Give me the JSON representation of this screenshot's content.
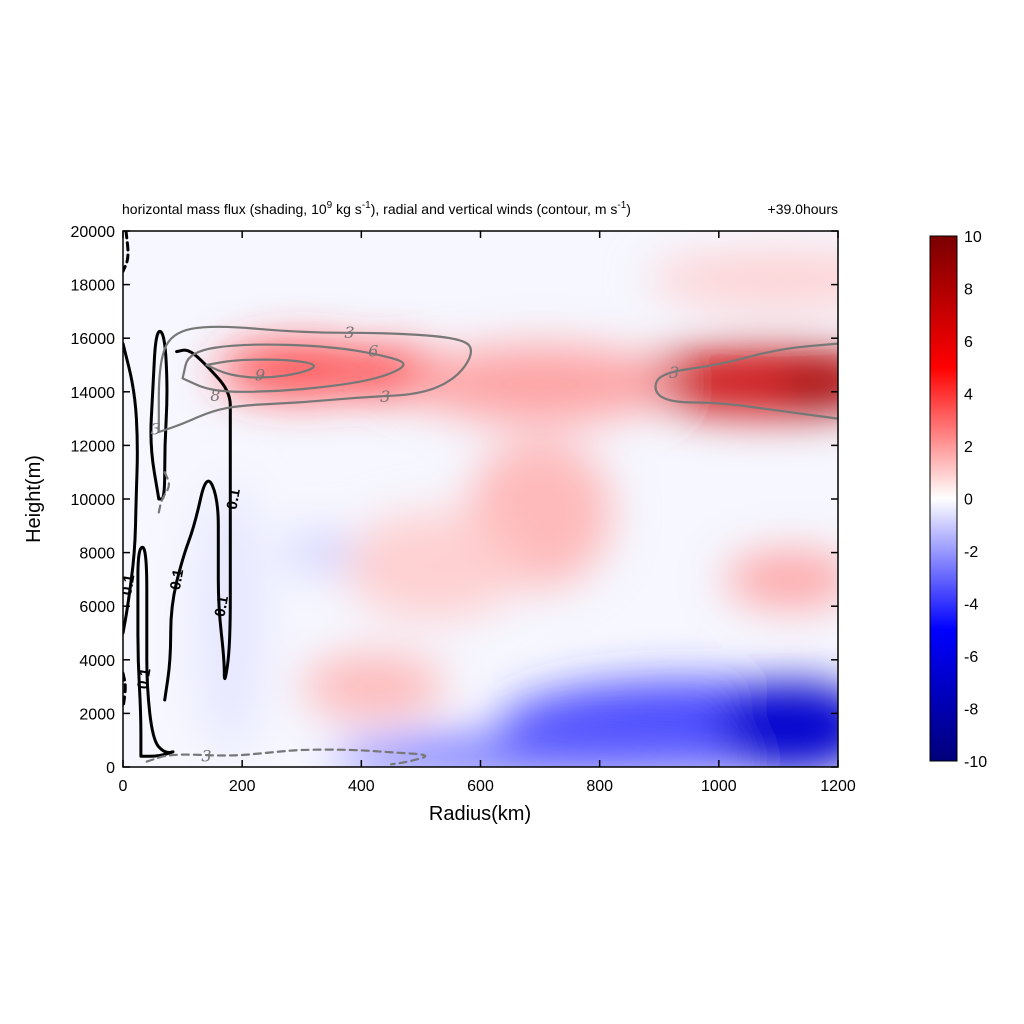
{
  "chart_data": {
    "type": "heatmap",
    "title_parts": {
      "a": "horizontal mass flux (shading, 10",
      "a_sup": "9",
      "b": " kg s",
      "b_sup": "-1",
      "c": "), radial and vertical winds (contour, m s",
      "c_sup": "-1",
      "d": ")"
    },
    "time_label": "+39.0hours",
    "xlabel": "Radius(km)",
    "ylabel": "Height(m)",
    "xlim": [
      0,
      1200
    ],
    "ylim": [
      0,
      20000
    ],
    "xticks": [
      "0",
      "200",
      "400",
      "600",
      "800",
      "1000",
      "1200"
    ],
    "yticks": [
      "0",
      "2000",
      "4000",
      "6000",
      "8000",
      "10000",
      "12000",
      "14000",
      "16000",
      "18000",
      "20000"
    ],
    "colorbar": {
      "range": [
        -10,
        10
      ],
      "ticks": [
        "10",
        "8",
        "6",
        "4",
        "2",
        "0",
        "-2",
        "-4",
        "-6",
        "-8",
        "-10"
      ],
      "colormap": [
        "#00007a",
        "#0000ff",
        "#ffffff",
        "#ff0000",
        "#7a0000"
      ]
    },
    "shading_blobs": [
      {
        "x": 300,
        "y": 14800,
        "rx": 140,
        "ry": 1000,
        "value": 4
      },
      {
        "x": 460,
        "y": 14700,
        "rx": 80,
        "ry": 900,
        "value": 4
      },
      {
        "x": 1080,
        "y": 14400,
        "rx": 230,
        "ry": 1300,
        "value": 7
      },
      {
        "x": 1170,
        "y": 14200,
        "rx": 60,
        "ry": 900,
        "value": 9
      },
      {
        "x": 700,
        "y": 14300,
        "rx": 220,
        "ry": 1400,
        "value": 2
      },
      {
        "x": 1100,
        "y": 18200,
        "rx": 220,
        "ry": 1000,
        "value": 1
      },
      {
        "x": 700,
        "y": 9500,
        "rx": 120,
        "ry": 2800,
        "value": 1.5
      },
      {
        "x": 520,
        "y": 7500,
        "rx": 150,
        "ry": 2000,
        "value": 1
      },
      {
        "x": 420,
        "y": 3000,
        "rx": 120,
        "ry": 1200,
        "value": 1.5
      },
      {
        "x": 1120,
        "y": 7000,
        "rx": 110,
        "ry": 1000,
        "value": 2
      },
      {
        "x": 950,
        "y": 1500,
        "rx": 320,
        "ry": 1700,
        "value": -4
      },
      {
        "x": 1130,
        "y": 1500,
        "rx": 130,
        "ry": 1700,
        "value": -7
      },
      {
        "x": 700,
        "y": 400,
        "rx": 350,
        "ry": 800,
        "value": -3
      },
      {
        "x": 330,
        "y": 8000,
        "rx": 60,
        "ry": 700,
        "value": -1
      },
      {
        "x": 180,
        "y": 5500,
        "rx": 60,
        "ry": 5000,
        "value": -0.5
      }
    ],
    "contours": [
      {
        "level": "0.1",
        "color": "#000000",
        "dashed": false,
        "points": [
          [
            0,
            15800
          ],
          [
            20,
            14000
          ],
          [
            25,
            12000
          ],
          [
            22,
            10000
          ],
          [
            20,
            8000
          ],
          [
            8,
            6000
          ],
          [
            0,
            5000
          ]
        ]
      },
      {
        "level": "0.1",
        "color": "#000000",
        "dashed": false,
        "points": [
          [
            30,
            400
          ],
          [
            30,
            2000
          ],
          [
            25,
            4000
          ],
          [
            25,
            6000
          ],
          [
            25,
            8200
          ],
          [
            40,
            8200
          ],
          [
            40,
            5000
          ],
          [
            40,
            3000
          ],
          [
            50,
            1000
          ],
          [
            70,
            500
          ],
          [
            90,
            600
          ],
          [
            60,
            400
          ],
          [
            30,
            400
          ]
        ]
      },
      {
        "level": "0.1",
        "color": "#000000",
        "dashed": false,
        "points": [
          [
            60,
            10000
          ],
          [
            45,
            12000
          ],
          [
            50,
            14000
          ],
          [
            55,
            16300
          ],
          [
            70,
            16200
          ],
          [
            75,
            14000
          ],
          [
            70,
            12000
          ],
          [
            70,
            10000
          ],
          [
            60,
            10000
          ]
        ]
      },
      {
        "level": "0.1",
        "color": "#000000",
        "dashed": false,
        "points": [
          [
            70,
            2500
          ],
          [
            80,
            4000
          ],
          [
            80,
            6000
          ],
          [
            100,
            7800
          ],
          [
            120,
            9000
          ],
          [
            140,
            11000
          ],
          [
            160,
            10000
          ],
          [
            160,
            8000
          ],
          [
            160,
            6000
          ],
          [
            170,
            4000
          ],
          [
            170,
            3000
          ],
          [
            180,
            4500
          ],
          [
            180,
            8000
          ],
          [
            180,
            11000
          ],
          [
            180,
            13000
          ],
          [
            180,
            14000
          ],
          [
            140,
            15000
          ],
          [
            110,
            15600
          ],
          [
            90,
            15500
          ]
        ]
      },
      {
        "level": "3",
        "color": "#777777",
        "dashed": false,
        "points": [
          [
            60,
            12500
          ],
          [
            60,
            15000
          ],
          [
            80,
            16200
          ],
          [
            150,
            16500
          ],
          [
            300,
            16200
          ],
          [
            450,
            16200
          ],
          [
            570,
            16000
          ],
          [
            590,
            15500
          ],
          [
            560,
            14500
          ],
          [
            500,
            13900
          ],
          [
            400,
            13800
          ],
          [
            300,
            13600
          ],
          [
            200,
            13500
          ],
          [
            150,
            13300
          ],
          [
            100,
            12800
          ],
          [
            60,
            12500
          ]
        ]
      },
      {
        "level": "6",
        "color": "#777777",
        "dashed": false,
        "points": [
          [
            100,
            14500
          ],
          [
            110,
            15500
          ],
          [
            200,
            15800
          ],
          [
            350,
            15700
          ],
          [
            450,
            15300
          ],
          [
            480,
            15000
          ],
          [
            430,
            14500
          ],
          [
            350,
            14200
          ],
          [
            250,
            14000
          ],
          [
            150,
            14000
          ],
          [
            100,
            14500
          ]
        ]
      },
      {
        "level": "9",
        "color": "#777777",
        "dashed": false,
        "points": [
          [
            140,
            15000
          ],
          [
            190,
            15200
          ],
          [
            280,
            15200
          ],
          [
            330,
            15000
          ],
          [
            300,
            14700
          ],
          [
            240,
            14500
          ],
          [
            180,
            14600
          ],
          [
            140,
            15000
          ]
        ]
      },
      {
        "level": "3",
        "color": "#777777",
        "dashed": false,
        "points": [
          [
            1200,
            15800
          ],
          [
            1100,
            15600
          ],
          [
            1000,
            15000
          ],
          [
            900,
            14700
          ],
          [
            890,
            14000
          ],
          [
            920,
            13600
          ],
          [
            1000,
            13600
          ],
          [
            1100,
            13300
          ],
          [
            1200,
            13000
          ]
        ]
      },
      {
        "level": "-3",
        "color": "#777777",
        "dashed": true,
        "points": [
          [
            40,
            200
          ],
          [
            80,
            500
          ],
          [
            180,
            400
          ],
          [
            250,
            550
          ],
          [
            300,
            650
          ],
          [
            380,
            650
          ],
          [
            450,
            550
          ],
          [
            520,
            450
          ],
          [
            480,
            200
          ],
          [
            450,
            100
          ]
        ]
      },
      {
        "level": "-3",
        "color": "#777777",
        "dashed": true,
        "points": [
          [
            70,
            11000
          ],
          [
            80,
            10500
          ],
          [
            65,
            10000
          ],
          [
            60,
            9500
          ]
        ]
      },
      {
        "level": "-0.1",
        "color": "#000000",
        "dashed": true,
        "points": [
          [
            5,
            20000
          ],
          [
            10,
            19000
          ],
          [
            0,
            18500
          ]
        ]
      },
      {
        "level": "-0.1",
        "color": "#000000",
        "dashed": true,
        "points": [
          [
            0,
            3500
          ],
          [
            5,
            3000
          ],
          [
            0,
            2200
          ]
        ]
      }
    ],
    "contour_labels": [
      {
        "text": "3",
        "x": 380,
        "y": 16200,
        "color": "#777777"
      },
      {
        "text": "6",
        "x": 420,
        "y": 15500,
        "color": "#777777"
      },
      {
        "text": "9",
        "x": 230,
        "y": 14600,
        "color": "#777777"
      },
      {
        "text": "8",
        "x": 155,
        "y": 13850,
        "color": "#777777"
      },
      {
        "text": "3",
        "x": 440,
        "y": 13800,
        "color": "#777777"
      },
      {
        "text": "3",
        "x": 925,
        "y": 14700,
        "color": "#777777"
      },
      {
        "text": "3",
        "x": 55,
        "y": 12600,
        "color": "#777777"
      },
      {
        "text": "3",
        "x": 140,
        "y": 400,
        "color": "#777777"
      },
      {
        "text": "0.1",
        "x": 185,
        "y": 10000,
        "color": "#000000"
      },
      {
        "text": "0.1",
        "x": 90,
        "y": 7000,
        "color": "#000000"
      },
      {
        "text": "0.1",
        "x": 165,
        "y": 6000,
        "color": "#000000"
      },
      {
        "text": "0.1",
        "x": 8,
        "y": 6800,
        "color": "#000000"
      },
      {
        "text": "0.1",
        "x": 35,
        "y": 3300,
        "color": "#000000"
      }
    ]
  }
}
